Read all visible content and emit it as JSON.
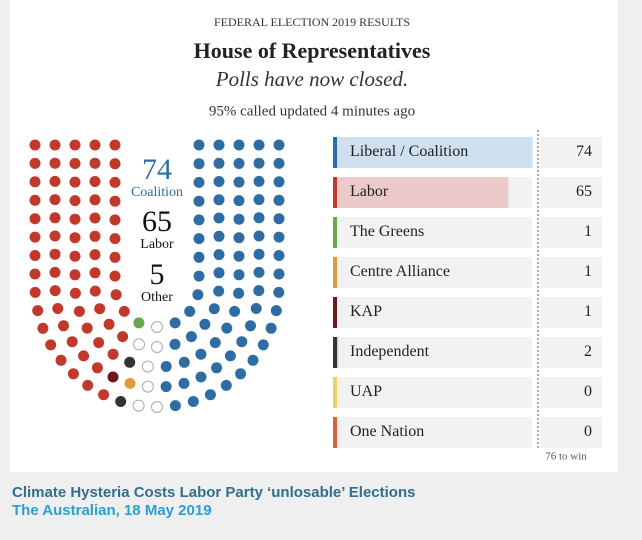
{
  "header": {
    "kicker": "FEDERAL ELECTION 2019 RESULTS",
    "title": "House of Representatives",
    "subtitle": "Polls have now closed.",
    "status": "95% called updated 4 minutes ago"
  },
  "summary": [
    {
      "value": 74,
      "label": "Coalition",
      "color": "#2e6da4"
    },
    {
      "value": 65,
      "label": "Labor",
      "color": "#111111"
    },
    {
      "value": 5,
      "label": "Other",
      "color": "#111111"
    }
  ],
  "parties": [
    {
      "name": "Liberal / Coalition",
      "seats": 74,
      "color": "#2e6da4",
      "bar_color": "#cfe0ef"
    },
    {
      "name": "Labor",
      "seats": 65,
      "color": "#c0392b",
      "bar_color": "#eccaca"
    },
    {
      "name": "The Greens",
      "seats": 1,
      "color": "#6aa84f",
      "bar_color": "#d6ebcc"
    },
    {
      "name": "Centre Alliance",
      "seats": 1,
      "color": "#e09a3c",
      "bar_color": "#f5dfc0"
    },
    {
      "name": "KAP",
      "seats": 1,
      "color": "#6b1a1a",
      "bar_color": "#dcc4c4"
    },
    {
      "name": "Independent",
      "seats": 2,
      "color": "#333333",
      "bar_color": "#d0d0d0"
    },
    {
      "name": "UAP",
      "seats": 0,
      "color": "#f0d060",
      "bar_color": "#f7edc0"
    },
    {
      "name": "One Nation",
      "seats": 0,
      "color": "#e0603a",
      "bar_color": "#f5d0c4"
    }
  ],
  "win": {
    "value": 76,
    "label": "76 to win"
  },
  "seats_total": 151,
  "caption": {
    "headline": "Climate Hysteria Costs Labor Party ‘unlosable’ Elections",
    "source": "The Australian, 18 May 2019"
  }
}
